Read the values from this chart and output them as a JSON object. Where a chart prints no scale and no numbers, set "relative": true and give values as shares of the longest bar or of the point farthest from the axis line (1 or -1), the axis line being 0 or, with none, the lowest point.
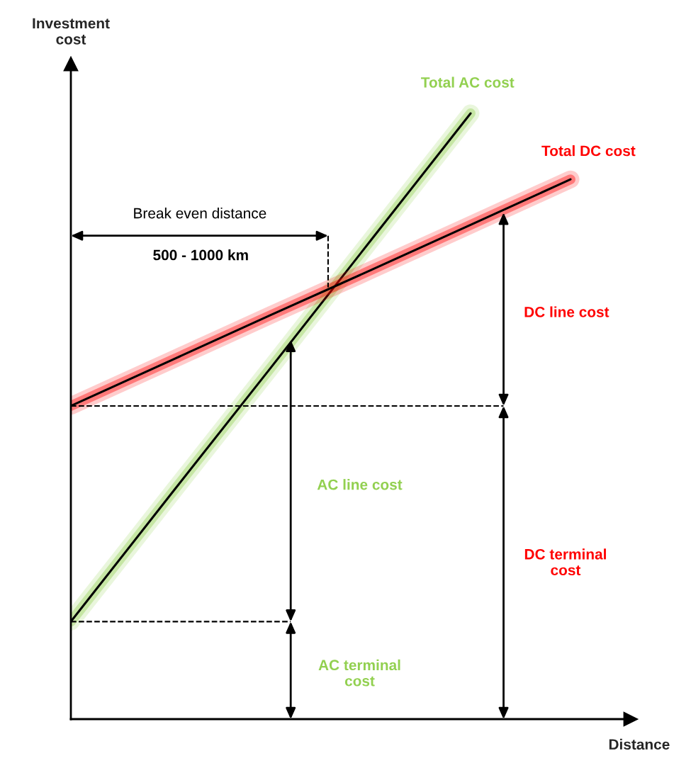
{
  "chart_data": {
    "type": "line",
    "relative": true,
    "xlabel": "Distance",
    "ylabel": "Investment cost",
    "categories": [
      null,
      null,
      null,
      null,
      null,
      null
    ],
    "series": [
      {
        "name": "Total AC cost",
        "color": "#92d050",
        "values": [
          0.161,
          0.371,
          0.58,
          0.79,
          1.0,
          null
        ]
      },
      {
        "name": "Total DC cost",
        "color": "#ff0000",
        "values": [
          0.517,
          0.592,
          0.667,
          0.741,
          0.816,
          0.891
        ]
      }
    ],
    "ref_lines": [
      {
        "axis": "y",
        "value": 0.517,
        "color": "#000000",
        "line_style": "dashed"
      },
      {
        "axis": "y",
        "value": 0.161,
        "color": "#000000",
        "line_style": "dashed"
      }
    ],
    "annotations": [
      "Break even distance",
      "500 - 1000 km",
      "DC line cost",
      "DC terminal cost",
      "AC line cost",
      "AC terminal cost"
    ],
    "marker": "none",
    "line_style": "solid",
    "legend": false
  }
}
